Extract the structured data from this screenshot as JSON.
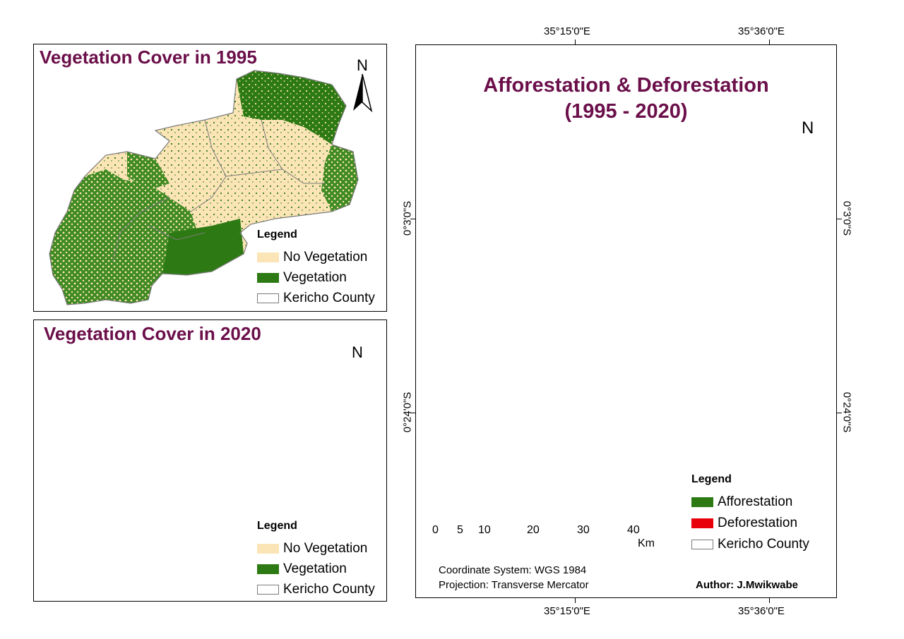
{
  "panel_1995": {
    "title": "Vegetation Cover in 1995",
    "north": "N",
    "legend": {
      "heading": "Legend",
      "items": [
        {
          "label": "No Vegetation",
          "color": "#fbe5b6"
        },
        {
          "label": "Vegetation",
          "color": "#2d7a14"
        },
        {
          "label": "Kericho County",
          "color": "#ffffff"
        }
      ]
    }
  },
  "panel_2020": {
    "title": "Vegetation Cover in 2020",
    "north": "N",
    "legend": {
      "heading": "Legend",
      "items": [
        {
          "label": "No Vegetation",
          "color": "#fbe5b6"
        },
        {
          "label": "Vegetation",
          "color": "#2d7a14"
        },
        {
          "label": "Kericho County",
          "color": "#ffffff"
        }
      ]
    }
  },
  "panel_change": {
    "title_line1": "Afforestation & Deforestation",
    "title_line2": "(1995 - 2020)",
    "north": "N",
    "legend": {
      "heading": "Legend",
      "items": [
        {
          "label": "Afforestation",
          "color": "#2d7a14"
        },
        {
          "label": "Deforestation",
          "color": "#e8000b"
        },
        {
          "label": "Kericho County",
          "color": "#ffffff"
        }
      ]
    },
    "graticule": {
      "top": [
        "35°15'0\"E",
        "35°36'0\"E"
      ],
      "bottom": [
        "35°15'0\"E",
        "35°36'0\"E"
      ],
      "left": [
        "0°3'0\"S",
        "0°24'0\"S"
      ],
      "right": [
        "0°3'0\"S",
        "0°24'0\"S"
      ]
    },
    "scale_bar": {
      "labels": [
        "0",
        "5",
        "10",
        "20",
        "30",
        "40"
      ],
      "unit": "Km"
    },
    "coordinate_system": "Coordinate System: WGS 1984",
    "projection": "Projection: Transverse Mercator",
    "author": "Author: J.Mwikwabe"
  },
  "colors": {
    "title": "#6b0f4a",
    "no_vegetation": "#fbe5b6",
    "vegetation": "#2d7a14",
    "deforestation": "#e8000b",
    "boundary": "#7a7a7a"
  }
}
